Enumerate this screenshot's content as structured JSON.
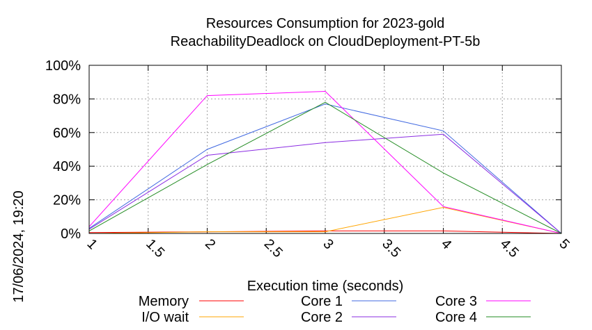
{
  "chart_data": {
    "type": "line",
    "title": "Resources Consumption for 2023-gold",
    "subtitle": "ReachabilityDeadlock on CloudDeployment-PT-5b",
    "xlabel": "Execution time (seconds)",
    "ylabel": "",
    "side_label": "17/06/2024, 19:20",
    "xlim": [
      1,
      5
    ],
    "ylim": [
      0,
      100
    ],
    "x_ticks": [
      "1",
      "1.5",
      "2",
      "2.5",
      "3",
      "3.5",
      "4",
      "4.5",
      "5"
    ],
    "y_ticks": [
      "0%",
      "20%",
      "40%",
      "60%",
      "80%",
      "100%"
    ],
    "grid": true,
    "legend_position": "bottom",
    "series": [
      {
        "name": "Memory",
        "color": "#ff0000",
        "x": [
          1,
          2,
          3,
          4,
          5
        ],
        "y": [
          0.5,
          1,
          1.5,
          1.5,
          0
        ]
      },
      {
        "name": "I/O wait",
        "color": "#ffa500",
        "x": [
          1,
          2,
          3,
          4,
          5
        ],
        "y": [
          0,
          1,
          1,
          15.5,
          0
        ]
      },
      {
        "name": "Core 1",
        "color": "#4169e1",
        "x": [
          1,
          2,
          3,
          4,
          5
        ],
        "y": [
          3,
          50,
          77,
          61,
          0
        ]
      },
      {
        "name": "Core 2",
        "color": "#8a2be2",
        "x": [
          1,
          2,
          3,
          4,
          5
        ],
        "y": [
          2.5,
          46.5,
          54,
          59,
          0
        ]
      },
      {
        "name": "Core 3",
        "color": "#ff00ff",
        "x": [
          1,
          2,
          3,
          4,
          5
        ],
        "y": [
          4,
          82,
          84.5,
          16,
          0
        ]
      },
      {
        "name": "Core 4",
        "color": "#228b22",
        "x": [
          1,
          2,
          3,
          4,
          5
        ],
        "y": [
          1.5,
          41,
          78,
          36,
          0
        ]
      }
    ]
  }
}
